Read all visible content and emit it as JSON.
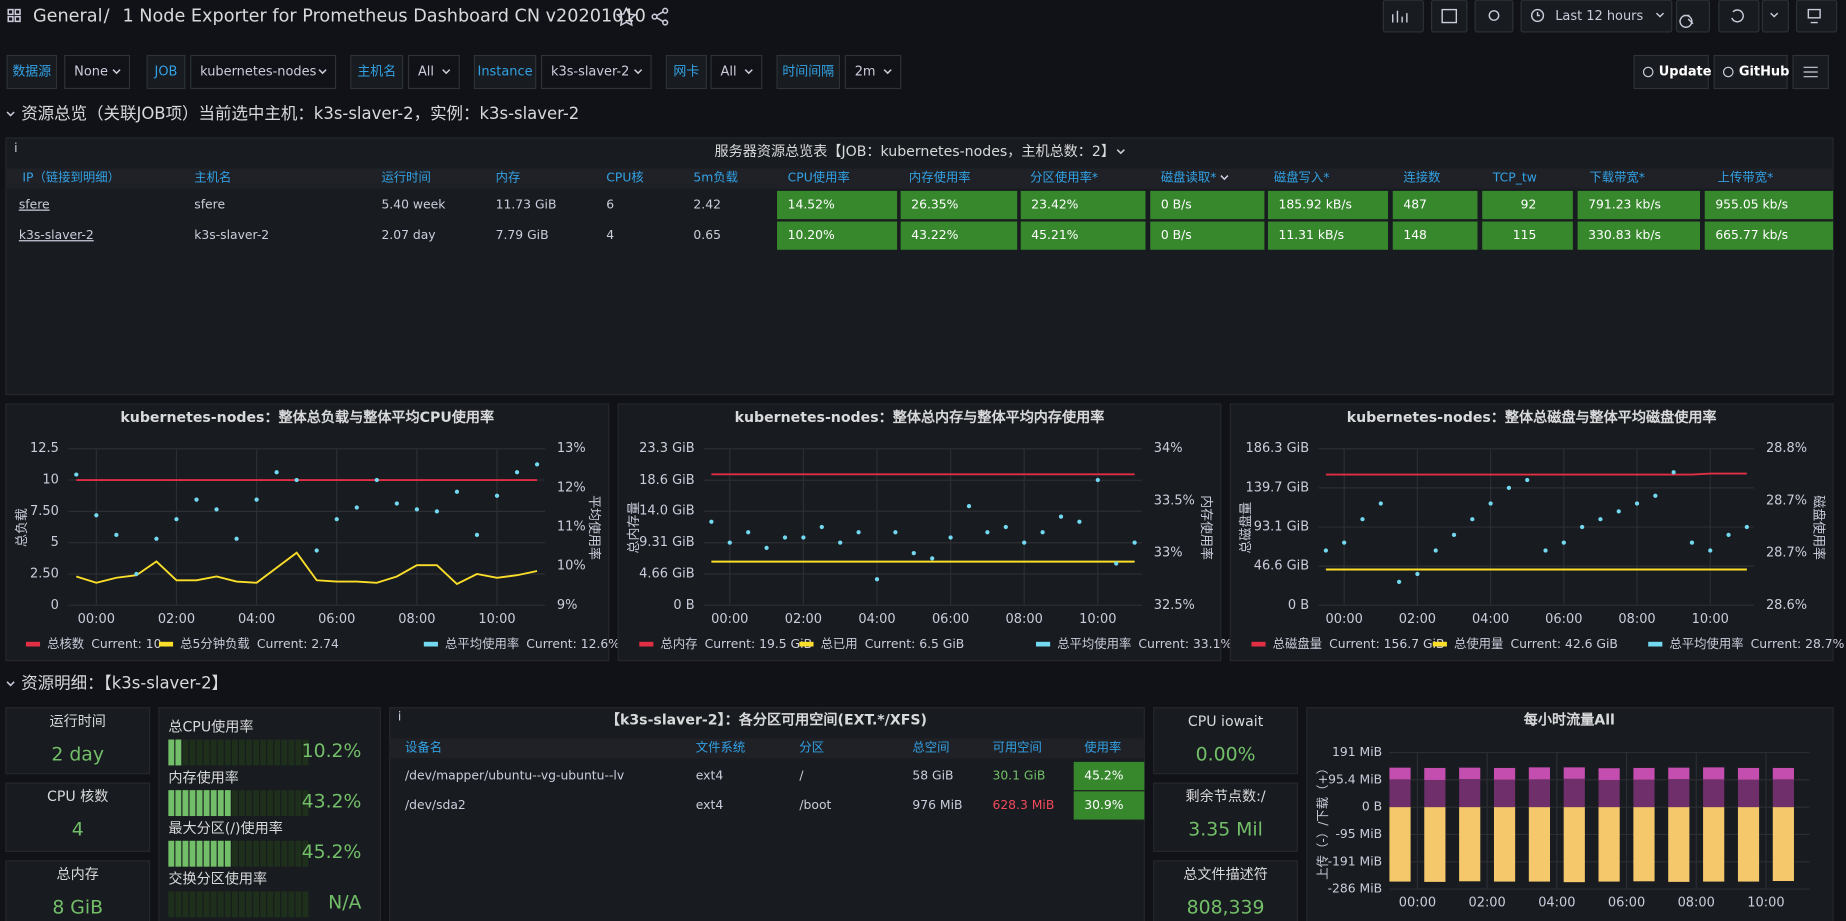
{
  "header": {
    "breadcrumb": "General",
    "separator": "/",
    "title": "1 Node Exporter for Prometheus Dashboard CN v20201010",
    "time_range": "Last 12 hours"
  },
  "variables": [
    {
      "label": "数据源",
      "value": "None"
    },
    {
      "label": "JOB",
      "value": "kubernetes-nodes"
    },
    {
      "label": "主机名",
      "value": "All"
    },
    {
      "label": "Instance",
      "value": "k3s-slaver-2"
    },
    {
      "label": "网卡",
      "value": "All"
    },
    {
      "label": "时间间隔",
      "value": "2m"
    }
  ],
  "links": [
    "Update",
    "GitHub"
  ],
  "rows": [
    "资源总览（关联JOB项）当前选中主机：k3s-slaver-2，实例：k3s-slaver-2",
    "资源明细：【k3s-slaver-2】"
  ],
  "summary_table": {
    "title": "服务器资源总览表【JOB：kubernetes-nodes，主机总数：2】",
    "columns": [
      "IP（链接到明细）",
      "主机名",
      "运行时间",
      "内存",
      "CPU核",
      "5m负载",
      "CPU使用率",
      "内存使用率",
      "分区使用率*",
      "磁盘读取*",
      "磁盘写入*",
      "连接数",
      "TCP_tw",
      "下载带宽*",
      "上传带宽*"
    ],
    "rows": [
      [
        "sfere",
        "sfere",
        "5.40 week",
        "11.73 GiB",
        "6",
        "2.42",
        "14.52%",
        "26.35%",
        "23.42%",
        "0 B/s",
        "185.92 kB/s",
        "487",
        "92",
        "791.23 kb/s",
        "955.05 kb/s"
      ],
      [
        "k3s-slaver-2",
        "k3s-slaver-2",
        "2.07 day",
        "7.79 GiB",
        "4",
        "0.65",
        "10.20%",
        "43.22%",
        "45.21%",
        "0 B/s",
        "11.31 kB/s",
        "148",
        "115",
        "330.83 kb/s",
        "665.77 kb/s"
      ]
    ]
  },
  "charts": [
    {
      "type": "line",
      "title": "kubernetes-nodes：整体总负载与整体平均CPU使用率",
      "y_label": "总负载",
      "y2_label": "平均使用率",
      "ylim": [
        0,
        12.5
      ],
      "yticks": [
        0,
        {
          "value": 2.5,
          "label": "2.50"
        },
        5,
        {
          "value": 7.5,
          "label": "7.50"
        },
        10,
        12.5
      ],
      "y2lim": [
        9,
        13
      ],
      "y2ticks": [
        {
          "value": 9,
          "label": "9%"
        },
        {
          "value": 10,
          "label": "10%"
        },
        {
          "value": 11,
          "label": "11%"
        },
        {
          "value": 12,
          "label": "12%"
        },
        {
          "value": 13,
          "label": "13%"
        }
      ],
      "xlim": [
        -0.7,
        11.2
      ],
      "xticks": [
        {
          "value": 0,
          "label": "00:00"
        },
        {
          "value": 2,
          "label": "02:00"
        },
        {
          "value": 4,
          "label": "04:00"
        },
        {
          "value": 6,
          "label": "06:00"
        },
        {
          "value": 8,
          "label": "08:00"
        },
        {
          "value": 10,
          "label": "10:00"
        }
      ],
      "x": [
        -0.5,
        0,
        0.5,
        1,
        1.5,
        2,
        2.5,
        3,
        3.5,
        4,
        4.5,
        5,
        5.5,
        6,
        6.5,
        7,
        7.5,
        8,
        8.5,
        9,
        9.5,
        10,
        10.5,
        11
      ],
      "series": [
        {
          "name": "总核数",
          "legend_value": "Current: 10",
          "color": "#e02f44",
          "style": "line",
          "values": [
            10,
            10,
            10,
            10,
            10,
            10,
            10,
            10,
            10,
            10,
            10,
            10,
            10,
            10,
            10,
            10,
            10,
            10,
            10,
            10,
            10,
            10,
            10,
            10
          ]
        },
        {
          "name": "总5分钟负载",
          "legend_value": "Current: 2.74",
          "color": "#fade2a",
          "style": "line",
          "values": [
            2.3,
            1.8,
            2.2,
            2.4,
            3.5,
            2.0,
            2.0,
            2.3,
            1.9,
            1.8,
            3.0,
            4.2,
            2.0,
            1.9,
            1.9,
            1.8,
            2.3,
            3.2,
            3.2,
            1.7,
            2.5,
            2.2,
            2.4,
            2.74
          ]
        },
        {
          "name": "总平均使用率",
          "legend_value": "Current: 12.6%",
          "color": "#73d9f0",
          "style": "points",
          "axis": "y2",
          "values": [
            12.34,
            11.3,
            10.8,
            9.8,
            10.7,
            11.2,
            11.7,
            11.45,
            10.7,
            11.7,
            12.4,
            12.2,
            10.4,
            11.2,
            11.5,
            12.2,
            11.6,
            11.45,
            11.4,
            11.9,
            10.8,
            11.8,
            12.4,
            12.6
          ]
        }
      ]
    },
    {
      "type": "line",
      "title": "kubernetes-nodes：整体总内存与整体平均内存使用率",
      "y_label": "总内存量",
      "y2_label": "内存使用率",
      "ylim": [
        0,
        23.3
      ],
      "yticks": [
        {
          "value": 0,
          "label": "0 B"
        },
        {
          "value": 4.66,
          "label": "4.66 GiB"
        },
        {
          "value": 9.31,
          "label": "9.31 GiB"
        },
        {
          "value": 14.0,
          "label": "14.0 GiB"
        },
        {
          "value": 18.6,
          "label": "18.6 GiB"
        },
        {
          "value": 23.3,
          "label": "23.3 GiB"
        }
      ],
      "y2lim": [
        32.5,
        34
      ],
      "y2ticks": [
        {
          "value": 32.5,
          "label": "32.5%"
        },
        {
          "value": 33,
          "label": "33%"
        },
        {
          "value": 33.5,
          "label": "33.5%"
        },
        {
          "value": 34,
          "label": "34%"
        }
      ],
      "xlim": [
        -0.7,
        11.2
      ],
      "xticks": [
        {
          "value": 0,
          "label": "00:00"
        },
        {
          "value": 2,
          "label": "02:00"
        },
        {
          "value": 4,
          "label": "04:00"
        },
        {
          "value": 6,
          "label": "06:00"
        },
        {
          "value": 8,
          "label": "08:00"
        },
        {
          "value": 10,
          "label": "10:00"
        }
      ],
      "x": [
        -0.5,
        0,
        0.5,
        1,
        1.5,
        2,
        2.5,
        3,
        3.5,
        4,
        4.5,
        5,
        5.5,
        6,
        6.5,
        7,
        7.5,
        8,
        8.5,
        9,
        9.5,
        10,
        10.5,
        11
      ],
      "series": [
        {
          "name": "总内存",
          "legend_value": "Current: 19.5 GiB",
          "color": "#e02f44",
          "style": "line",
          "values": [
            19.5,
            19.5,
            19.5,
            19.5,
            19.5,
            19.5,
            19.5,
            19.5,
            19.5,
            19.5,
            19.5,
            19.5,
            19.5,
            19.5,
            19.5,
            19.5,
            19.5,
            19.5,
            19.5,
            19.5,
            19.5,
            19.5,
            19.5,
            19.5
          ]
        },
        {
          "name": "总已用",
          "legend_value": "Current: 6.5 GiB",
          "color": "#fade2a",
          "style": "line",
          "values": [
            6.5,
            6.5,
            6.5,
            6.5,
            6.5,
            6.5,
            6.5,
            6.5,
            6.5,
            6.5,
            6.5,
            6.5,
            6.5,
            6.5,
            6.5,
            6.5,
            6.5,
            6.5,
            6.5,
            6.5,
            6.5,
            6.5,
            6.5,
            6.5
          ]
        },
        {
          "name": "总平均使用率",
          "legend_value": "Current: 33.1%",
          "color": "#73d9f0",
          "style": "points",
          "axis": "y2",
          "values": [
            33.3,
            33.1,
            33.2,
            33.05,
            33.15,
            33.15,
            33.25,
            33.1,
            33.2,
            32.75,
            33.2,
            33.0,
            32.95,
            33.15,
            33.45,
            33.2,
            33.25,
            33.1,
            33.2,
            33.35,
            33.3,
            33.7,
            32.9,
            33.1
          ]
        }
      ]
    },
    {
      "type": "line",
      "title": "kubernetes-nodes：整体总磁盘与整体平均磁盘使用率",
      "y_label": "总磁盘量",
      "y2_label": "磁盘使用率",
      "ylim": [
        0,
        186.3
      ],
      "yticks": [
        {
          "value": 0,
          "label": "0 B"
        },
        {
          "value": 46.6,
          "label": "46.6 GiB"
        },
        {
          "value": 93.1,
          "label": "93.1 GiB"
        },
        {
          "value": 139.7,
          "label": "139.7 GiB"
        },
        {
          "value": 186.3,
          "label": "186.3 GiB"
        }
      ],
      "y2lim": [
        28.6,
        28.8
      ],
      "y2ticks": [
        {
          "value": 28.6,
          "label": "28.6%"
        },
        {
          "value": 28.667,
          "label": "28.7%"
        },
        {
          "value": 28.733,
          "label": "28.7%"
        },
        {
          "value": 28.8,
          "label": "28.8%"
        }
      ],
      "xlim": [
        -0.7,
        11.2
      ],
      "xticks": [
        {
          "value": 0,
          "label": "00:00"
        },
        {
          "value": 2,
          "label": "02:00"
        },
        {
          "value": 4,
          "label": "04:00"
        },
        {
          "value": 6,
          "label": "06:00"
        },
        {
          "value": 8,
          "label": "08:00"
        },
        {
          "value": 10,
          "label": "10:00"
        }
      ],
      "x": [
        -0.5,
        0,
        0.5,
        1,
        1.5,
        2,
        2.5,
        3,
        3.5,
        4,
        4.5,
        5,
        5.5,
        6,
        6.5,
        7,
        7.5,
        8,
        8.5,
        9,
        9.5,
        10,
        10.5,
        11
      ],
      "series": [
        {
          "name": "总磁盘量",
          "legend_value": "Current: 156.7 GiB",
          "color": "#e02f44",
          "style": "line",
          "values": [
            155.5,
            155.5,
            155.5,
            155.5,
            155.5,
            155.5,
            155.5,
            155.5,
            155.5,
            155.5,
            155.5,
            155.5,
            155.5,
            155.5,
            155.5,
            155.5,
            155.5,
            155.5,
            155.5,
            155.5,
            155.5,
            156.7,
            156.7,
            156.7
          ]
        },
        {
          "name": "总使用量",
          "legend_value": "Current: 42.6 GiB",
          "color": "#fade2a",
          "style": "line",
          "values": [
            42.6,
            42.6,
            42.6,
            42.6,
            42.6,
            42.6,
            42.6,
            42.6,
            42.6,
            42.6,
            42.6,
            42.6,
            42.6,
            42.6,
            42.6,
            42.6,
            42.6,
            42.6,
            42.6,
            42.6,
            42.6,
            42.6,
            42.6,
            42.6
          ]
        },
        {
          "name": "总平均使用率",
          "legend_value": "Current: 28.7%",
          "color": "#73d9f0",
          "style": "points",
          "axis": "y2",
          "values": [
            28.67,
            28.68,
            28.71,
            28.73,
            28.63,
            28.64,
            28.67,
            28.69,
            28.71,
            28.73,
            28.75,
            28.76,
            28.67,
            28.68,
            28.7,
            28.71,
            28.72,
            28.73,
            28.74,
            28.77,
            28.68,
            28.67,
            28.69,
            28.7
          ]
        }
      ]
    }
  ],
  "stats_left": [
    {
      "title": "运行时间",
      "value": "2 day"
    },
    {
      "title": "CPU 核数",
      "value": "4"
    },
    {
      "title": "总内存",
      "value": "8 GiB"
    }
  ],
  "gauges": [
    {
      "title": "总CPU使用率",
      "value": 10.2,
      "label": "10.2%"
    },
    {
      "title": "内存使用率",
      "value": 43.2,
      "label": "43.2%"
    },
    {
      "title": "最大分区(/)使用率",
      "value": 45.2,
      "label": "45.2%"
    },
    {
      "title": "交换分区使用率",
      "value": null,
      "label": "N/A"
    }
  ],
  "partition_table": {
    "title": "【k3s-slaver-2】：各分区可用空间(EXT.*/XFS)",
    "columns": [
      "设备名",
      "文件系统",
      "分区",
      "总空间",
      "可用空间",
      "使用率"
    ],
    "rows": [
      [
        "/dev/mapper/ubuntu--vg-ubuntu--lv",
        "ext4",
        "/",
        "58 GiB",
        "30.1 GiB",
        "45.2%"
      ],
      [
        "/dev/sda2",
        "ext4",
        "/boot",
        "976 MiB",
        "628.3 MiB",
        "30.9%"
      ]
    ]
  },
  "stats_right": [
    {
      "title": "CPU iowait",
      "value": "0.00%"
    },
    {
      "title": "剩余节点数:/",
      "value": "3.35 Mil"
    },
    {
      "title": "总文件描述符",
      "value": "808,339"
    }
  ],
  "traffic": {
    "type": "bar",
    "title": "每小时流量All",
    "y_label": "上传（-）/下载（+）",
    "ylim": [
      -286,
      191
    ],
    "yticks": [
      {
        "value": 191,
        "label": "191 MiB"
      },
      {
        "value": 95.4,
        "label": "95.4 MiB"
      },
      {
        "value": 0,
        "label": "0 B"
      },
      {
        "value": -95.4,
        "label": "-95 MiB"
      },
      {
        "value": -191,
        "label": "-191 MiB"
      },
      {
        "value": -286,
        "label": "-286 MiB"
      }
    ],
    "xlim": [
      -0.81,
      11.25
    ],
    "xticks": [
      {
        "value": 0,
        "label": "00:00"
      },
      {
        "value": 2,
        "label": "02:00"
      },
      {
        "value": 4,
        "label": "04:00"
      },
      {
        "value": 6,
        "label": "06:00"
      },
      {
        "value": 8,
        "label": "08:00"
      },
      {
        "value": 10,
        "label": "10:00"
      }
    ],
    "x": [
      -0.5,
      0.5,
      1.5,
      2.5,
      3.5,
      4.5,
      5.5,
      6.5,
      7.5,
      8.5,
      9.5,
      10.5
    ],
    "series": [
      {
        "color": "#6e2f6a",
        "values": [
          97,
          95,
          98,
          96,
          97,
          99,
          95,
          96,
          98,
          97,
          96,
          97
        ]
      },
      {
        "color": "#c44eb0",
        "values": [
          41,
          42,
          40,
          41,
          42,
          40,
          41,
          41,
          40,
          42,
          41,
          40
        ]
      },
      {
        "color": "#f5c96b",
        "values": [
          -260,
          -261,
          -259,
          -260,
          -260,
          -262,
          -260,
          -259,
          -261,
          -260,
          -260,
          -258
        ]
      }
    ]
  }
}
